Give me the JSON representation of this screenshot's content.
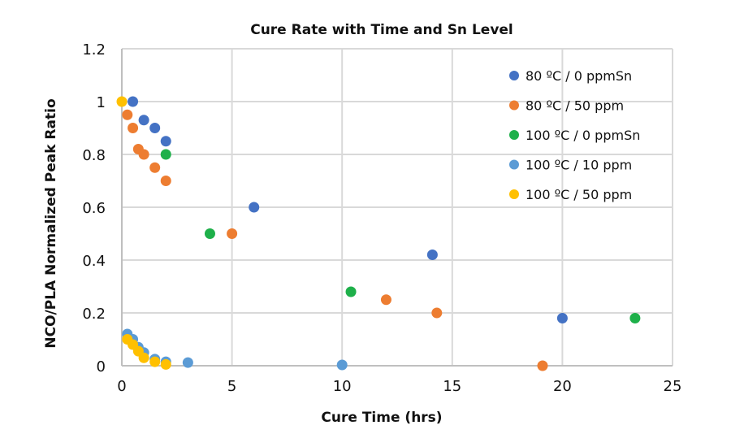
{
  "chart_data": {
    "type": "scatter",
    "title": "Cure Rate with Time and Sn  Level",
    "xlabel": "Cure Time (hrs)",
    "ylabel": "NCO/PLA Normalized Peak Ratio",
    "xlim": [
      0,
      25
    ],
    "ylim": [
      0,
      1.2
    ],
    "xticks": [
      0,
      5,
      10,
      15,
      20,
      25
    ],
    "yticks": [
      0,
      0.2,
      0.4,
      0.6,
      0.8,
      1,
      1.2
    ],
    "xtick_labels": [
      "0",
      "5",
      "10",
      "15",
      "20",
      "25"
    ],
    "ytick_labels": [
      "0",
      "0.2",
      "0.4",
      "0.6",
      "0.8",
      "1",
      "1.2"
    ],
    "grid": true,
    "legend_position": "top-right",
    "series": [
      {
        "name": "80 ºC / 0 ppmSn",
        "color": "#4472c4",
        "points": [
          [
            0.5,
            1.0
          ],
          [
            1,
            0.93
          ],
          [
            1.5,
            0.9
          ],
          [
            2,
            0.85
          ],
          [
            6,
            0.6
          ],
          [
            14.1,
            0.42
          ],
          [
            20,
            0.18
          ]
        ]
      },
      {
        "name": "80 ºC / 50 ppm",
        "color": "#ed7d31",
        "points": [
          [
            0.25,
            0.95
          ],
          [
            0.5,
            0.9
          ],
          [
            0.75,
            0.82
          ],
          [
            1,
            0.8
          ],
          [
            1.5,
            0.75
          ],
          [
            2,
            0.7
          ],
          [
            5,
            0.5
          ],
          [
            12,
            0.25
          ],
          [
            14.3,
            0.2
          ],
          [
            19.1,
            0.0
          ]
        ]
      },
      {
        "name": "100 ºC / 0 ppmSn",
        "color": "#1eb04a",
        "points": [
          [
            2,
            0.8
          ],
          [
            4,
            0.5
          ],
          [
            10.4,
            0.28
          ],
          [
            23.3,
            0.18
          ]
        ]
      },
      {
        "name": "100 ºC / 10 ppm",
        "color": "#5b9bd5",
        "points": [
          [
            0.25,
            0.12
          ],
          [
            0.5,
            0.1
          ],
          [
            0.75,
            0.07
          ],
          [
            1,
            0.05
          ],
          [
            1.5,
            0.025
          ],
          [
            2,
            0.015
          ],
          [
            3,
            0.012
          ],
          [
            10,
            0.003
          ]
        ]
      },
      {
        "name": "100 ºC / 50 ppm",
        "color": "#ffc000",
        "points": [
          [
            0,
            1.0
          ],
          [
            0.25,
            0.1
          ],
          [
            0.5,
            0.08
          ],
          [
            0.75,
            0.055
          ],
          [
            1,
            0.03
          ],
          [
            1.5,
            0.015
          ],
          [
            2,
            0.005
          ]
        ]
      }
    ]
  }
}
